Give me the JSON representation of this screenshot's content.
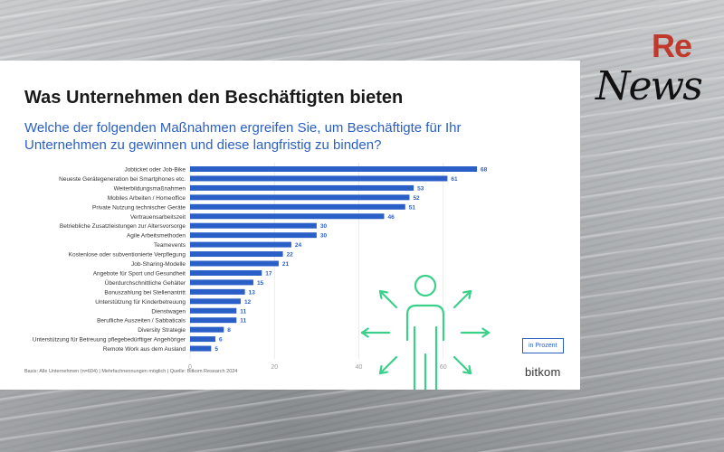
{
  "card": {
    "title": "Was Unternehmen den Beschäftigten bieten",
    "subtitle": "Welche der folgenden Maßnahmen ergreifen Sie, um Beschäftigte für Ihr Unternehmen zu gewinnen und diese langfristig zu binden?",
    "source": "Basis: Alle Unternehmen (n=604) | Mehrfachnennungen möglich | Quelle: Bitkom Research 2024",
    "unit_badge": "in Prozent",
    "brand": "bitkom"
  },
  "logo": {
    "re": "Re",
    "news": "News"
  },
  "icons": {
    "person_arrows": "person-with-arrows-icon"
  },
  "colors": {
    "bar": "#2a5fc7",
    "accent": "#2a5fc7",
    "icon": "#3bd08a",
    "logo_red": "#c0392b"
  },
  "chart_data": {
    "type": "bar",
    "orientation": "horizontal",
    "categories": [
      "Jobticket oder Job-Bike",
      "Neueste Gerätegeneration bei Smartphones etc.",
      "Weiterbildungsmaßnahmen",
      "Mobiles Arbeiten / Homeoffice",
      "Private Nutzung technischer Geräte",
      "Vertrauensarbeitszeit",
      "Betriebliche Zusatzleistungen zur Altersvorsorge",
      "Agile Arbeitsmethoden",
      "Teamevents",
      "Kostenlose oder subventionierte Verpflegung",
      "Job-Sharing-Modelle",
      "Angebote für Sport und Gesundheit",
      "Überdurchschnittliche Gehälter",
      "Bonuszahlung bei Stellenantritt",
      "Unterstützung für Kinderbetreuung",
      "Dienstwagen",
      "Berufliche Auszeiten / Sabbaticals",
      "Diversity Strategie",
      "Unterstützung für Betreuung pflegebedürftiger Angehöriger",
      "Remote Work aus dem Ausland"
    ],
    "values": [
      68,
      61,
      53,
      52,
      51,
      46,
      30,
      30,
      24,
      22,
      21,
      17,
      15,
      13,
      12,
      11,
      11,
      8,
      6,
      5
    ],
    "x_ticks": [
      "0",
      "20",
      "40",
      "60"
    ],
    "xlim": [
      0,
      80
    ],
    "grid": true
  }
}
